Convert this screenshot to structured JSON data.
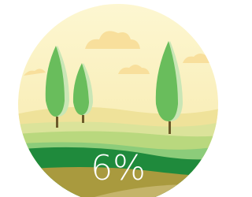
{
  "progress": {
    "label": "6%"
  }
}
